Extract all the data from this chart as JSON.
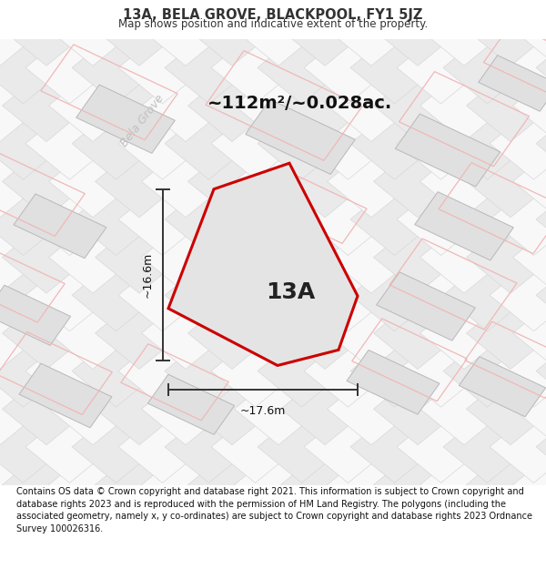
{
  "title": "13A, BELA GROVE, BLACKPOOL, FY1 5JZ",
  "subtitle": "Map shows position and indicative extent of the property.",
  "footer": "Contains OS data © Crown copyright and database right 2021. This information is subject to Crown copyright and database rights 2023 and is reproduced with the permission of HM Land Registry. The polygons (including the associated geometry, namely x, y co-ordinates) are subject to Crown copyright and database rights 2023 Ordnance Survey 100026316.",
  "area_label": "~112m²/~0.028ac.",
  "label_13a": "13A",
  "dim_vertical": "~16.6m",
  "dim_horizontal": "~17.6m",
  "street_label": "Bela Grove",
  "bg_color": "#f0f0f0",
  "plot_fill": "#e4e4e4",
  "plot_outline": "#cc0000",
  "dim_line_color": "#333333",
  "street_label_color": "#c0c0c0",
  "pink_line_color": "#f0b8b8",
  "gray_block_color": "#e0e0e0",
  "tile_line_color": "#d8d8d8",
  "title_color": "#333333",
  "title_fontsize": 10.5,
  "subtitle_fontsize": 8.5,
  "area_fontsize": 14,
  "label_fontsize": 18,
  "dim_fontsize": 9,
  "street_fontsize": 9,
  "footer_fontsize": 7
}
